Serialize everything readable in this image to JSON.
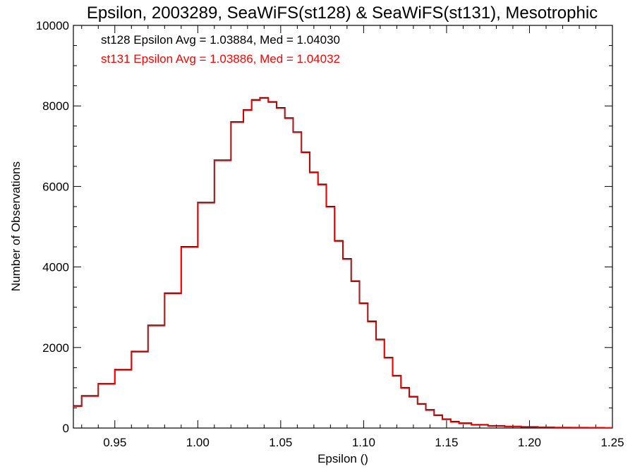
{
  "chart_data": {
    "type": "line",
    "title": "Epsilon, 2003289, SeaWiFS(st128) & SeaWiFS(st131), Mesotrophic",
    "xlabel": "Epsilon ()",
    "ylabel": "Number of Observations",
    "xlim": [
      0.925,
      1.25
    ],
    "ylim": [
      0,
      10000
    ],
    "x_ticks": [
      0.95,
      1.0,
      1.05,
      1.1,
      1.15,
      1.2,
      1.25
    ],
    "x_tick_labels": [
      "0.95",
      "1.00",
      "1.05",
      "1.10",
      "1.15",
      "1.20",
      "1.25"
    ],
    "y_ticks": [
      0,
      2000,
      4000,
      6000,
      8000,
      10000
    ],
    "y_tick_labels": [
      "0",
      "2000",
      "4000",
      "6000",
      "8000",
      "10000"
    ],
    "grid": false,
    "legend_position": "top-left",
    "series": [
      {
        "name": "st128 Epsilon Avg = 1.03884, Med = 1.04030",
        "color": "#000000",
        "step": true,
        "x": [
          0.925,
          0.935,
          0.945,
          0.955,
          0.965,
          0.975,
          0.985,
          0.995,
          1.005,
          1.015,
          1.025,
          1.03,
          1.035,
          1.04,
          1.045,
          1.05,
          1.055,
          1.06,
          1.065,
          1.07,
          1.075,
          1.08,
          1.085,
          1.09,
          1.095,
          1.1,
          1.105,
          1.11,
          1.115,
          1.12,
          1.125,
          1.13,
          1.135,
          1.14,
          1.145,
          1.15,
          1.155,
          1.16,
          1.17,
          1.18,
          1.19,
          1.2,
          1.21,
          1.22,
          1.23,
          1.24,
          1.25
        ],
        "y": [
          550,
          800,
          1100,
          1450,
          1900,
          2550,
          3350,
          4500,
          5600,
          6650,
          7600,
          7900,
          8150,
          8200,
          8100,
          7950,
          7700,
          7350,
          6850,
          6350,
          6050,
          5500,
          4650,
          4200,
          3650,
          3100,
          2650,
          2200,
          1750,
          1300,
          1000,
          780,
          600,
          450,
          320,
          220,
          160,
          120,
          80,
          55,
          40,
          28,
          20,
          14,
          10,
          8,
          5
        ]
      },
      {
        "name": "st131 Epsilon Avg = 1.03886, Med = 1.04032",
        "color": "#ff0000",
        "step": true,
        "x": [
          0.925,
          0.935,
          0.945,
          0.955,
          0.965,
          0.975,
          0.985,
          0.995,
          1.005,
          1.015,
          1.025,
          1.03,
          1.035,
          1.04,
          1.045,
          1.05,
          1.055,
          1.06,
          1.065,
          1.07,
          1.075,
          1.08,
          1.085,
          1.09,
          1.095,
          1.1,
          1.105,
          1.11,
          1.115,
          1.12,
          1.125,
          1.13,
          1.135,
          1.14,
          1.145,
          1.15,
          1.155,
          1.16,
          1.17,
          1.18,
          1.19,
          1.2,
          1.21,
          1.22,
          1.23,
          1.24,
          1.25
        ],
        "y": [
          540,
          790,
          1090,
          1440,
          1890,
          2540,
          3340,
          4490,
          5590,
          6640,
          7590,
          7890,
          8140,
          8190,
          8090,
          7940,
          7690,
          7340,
          6840,
          6340,
          6040,
          5490,
          4640,
          4190,
          3640,
          3090,
          2640,
          2190,
          1740,
          1290,
          990,
          770,
          590,
          440,
          310,
          210,
          150,
          110,
          75,
          50,
          36,
          25,
          18,
          12,
          9,
          7,
          4
        ]
      }
    ]
  }
}
